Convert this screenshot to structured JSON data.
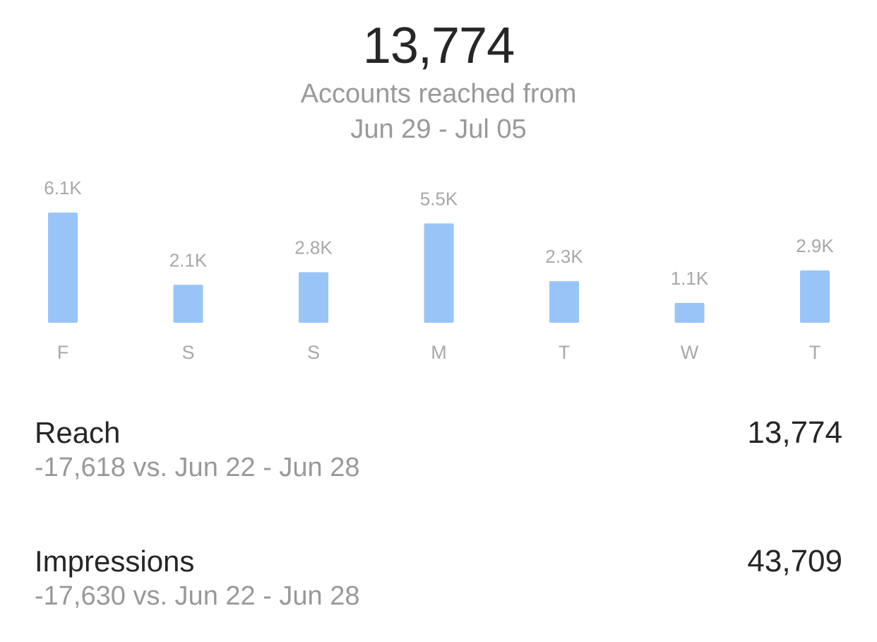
{
  "summary": {
    "total": "13,774",
    "label_line1": "Accounts reached from",
    "label_line2": "Jun 29 - Jul 05"
  },
  "colors": {
    "bar": "#99c4f7",
    "label": "#a8a8a8",
    "text": "#262626",
    "secondary": "#999999"
  },
  "chart_data": {
    "type": "bar",
    "categories": [
      "F",
      "S",
      "S",
      "M",
      "T",
      "W",
      "T"
    ],
    "values": [
      6100,
      2100,
      2800,
      5500,
      2300,
      1100,
      2900
    ],
    "value_labels": [
      "6.1K",
      "2.1K",
      "2.8K",
      "5.5K",
      "2.3K",
      "1.1K",
      "2.9K"
    ],
    "ylim": [
      0,
      6100
    ],
    "grid": false,
    "legend": "none"
  },
  "metrics": {
    "reach": {
      "name": "Reach",
      "value": "13,774",
      "comparison": "-17,618 vs. Jun 22 - Jun 28"
    },
    "impressions": {
      "name": "Impressions",
      "value": "43,709",
      "comparison": "-17,630 vs. Jun 22 - Jun 28"
    }
  }
}
